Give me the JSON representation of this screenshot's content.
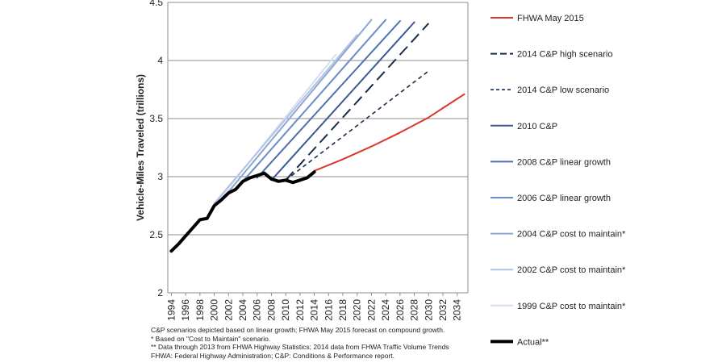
{
  "chart_data": {
    "type": "line",
    "title": "",
    "xlabel": "",
    "ylabel": "Vehicle-Miles Traveled (trillions)",
    "xlim": [
      1993.5,
      2035.5
    ],
    "ylim": [
      2,
      4.5
    ],
    "y_ticks": [
      2,
      2.5,
      3,
      3.5,
      4,
      4.5
    ],
    "y_tick_labels": [
      "2",
      "2.5",
      "3",
      "3.5",
      "4",
      "4.5"
    ],
    "x_ticks": [
      1994,
      1996,
      1998,
      2000,
      2002,
      2004,
      2006,
      2008,
      2010,
      2012,
      2014,
      2016,
      2018,
      2020,
      2022,
      2024,
      2026,
      2028,
      2030,
      2032,
      2034
    ],
    "x_tick_labels": [
      "1994",
      "1996",
      "1998",
      "2000",
      "2002",
      "2004",
      "2006",
      "2008",
      "2010",
      "2012",
      "2014",
      "2016",
      "2018",
      "2020",
      "2022",
      "2024",
      "2026",
      "2028",
      "2030",
      "2032",
      "2034"
    ],
    "grid": "horizontal",
    "legend_position": "right",
    "series": [
      {
        "name": "FHWA May 2015",
        "color": "#d9382b",
        "dash": "solid",
        "width": 2,
        "x": [
          2014,
          2018,
          2022,
          2026,
          2030,
          2032,
          2034,
          2035
        ],
        "y": [
          3.05,
          3.15,
          3.26,
          3.38,
          3.51,
          3.59,
          3.67,
          3.71
        ]
      },
      {
        "name": "2014 C&P high scenario",
        "color": "#1a2c4e",
        "dash": "long",
        "width": 2,
        "x": [
          2010,
          2030
        ],
        "y": [
          2.97,
          4.32
        ]
      },
      {
        "name": "2014 C&P low scenario",
        "color": "#1a2c4e",
        "dash": "short",
        "width": 1.6,
        "x": [
          2010,
          2030
        ],
        "y": [
          2.97,
          3.91
        ]
      },
      {
        "name": "2010 C&P",
        "color": "#3a5a96",
        "dash": "solid",
        "width": 2,
        "x": [
          2008,
          2028
        ],
        "y": [
          2.97,
          4.33
        ]
      },
      {
        "name": "2008 C&P linear growth",
        "color": "#4d6fb0",
        "dash": "solid",
        "width": 2,
        "x": [
          2006,
          2026
        ],
        "y": [
          2.99,
          4.34
        ]
      },
      {
        "name": "2006 C&P linear growth",
        "color": "#6b8bc4",
        "dash": "solid",
        "width": 2,
        "x": [
          2004,
          2024
        ],
        "y": [
          2.96,
          4.35
        ]
      },
      {
        "name": "2004 C&P cost to maintain*",
        "color": "#8ea6d4",
        "dash": "solid",
        "width": 2,
        "x": [
          2002,
          2022
        ],
        "y": [
          2.87,
          4.35
        ]
      },
      {
        "name": "2002 C&P cost to maintain*",
        "color": "#b3c4e3",
        "dash": "solid",
        "width": 2,
        "x": [
          2000,
          2020
        ],
        "y": [
          2.77,
          4.22
        ]
      },
      {
        "name": "1999 C&P cost to maintain*",
        "color": "#d3deef",
        "dash": "solid",
        "width": 2,
        "x": [
          2000,
          2017
        ],
        "y": [
          2.75,
          4.05
        ]
      },
      {
        "name": "Actual**",
        "color": "#000000",
        "dash": "solid",
        "width": 4,
        "x": [
          1994,
          1995,
          1996,
          1997,
          1998,
          1999,
          2000,
          2001,
          2002,
          2003,
          2004,
          2005,
          2006,
          2007,
          2008,
          2009,
          2010,
          2011,
          2012,
          2013,
          2014
        ],
        "y": [
          2.36,
          2.42,
          2.49,
          2.56,
          2.63,
          2.64,
          2.75,
          2.8,
          2.86,
          2.89,
          2.96,
          2.99,
          3.01,
          3.03,
          2.98,
          2.96,
          2.97,
          2.95,
          2.97,
          2.99,
          3.04
        ]
      }
    ]
  },
  "footnotes": [
    "C&P scenarios depicted based on linear growth; FHWA May 2015 forecast on compound growth.",
    "* Based on \"Cost to Maintain\" scenario.",
    "** Data through 2013 from FHWA Highway Statistics; 2014 data from FHWA Traffic Volume Trends",
    "FHWA: Federal Highway Administration; C&P: Conditions & Performance report."
  ]
}
